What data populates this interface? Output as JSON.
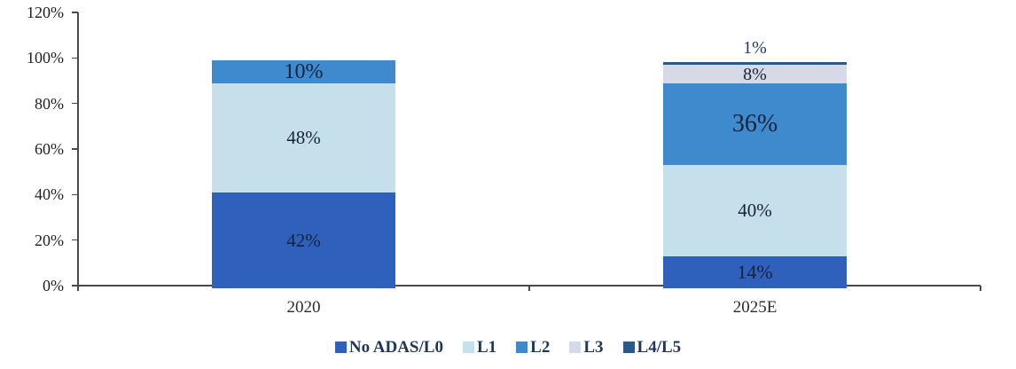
{
  "chart_data": {
    "type": "bar",
    "stacked": true,
    "categories": [
      "2020",
      "2025E"
    ],
    "series": [
      {
        "name": "No ADAS/L0",
        "color": "#2E60BC",
        "values": [
          42,
          14
        ],
        "labels": [
          "42%",
          "14%"
        ]
      },
      {
        "name": "L1",
        "color": "#C6E0EB",
        "values": [
          48,
          40
        ],
        "labels": [
          "48%",
          "40%"
        ]
      },
      {
        "name": "L2",
        "color": "#3E8ACD",
        "values": [
          10,
          36
        ],
        "labels": [
          "10%",
          "36%"
        ]
      },
      {
        "name": "L3",
        "color": "#D6D9E8",
        "values": [
          0,
          8
        ],
        "labels": [
          "",
          "8%"
        ]
      },
      {
        "name": "L4/L5",
        "color": "#275A8E",
        "values": [
          0,
          1
        ],
        "labels": [
          "",
          ""
        ]
      }
    ],
    "outside_labels": [
      {
        "category_index": 1,
        "text": "1%"
      }
    ],
    "title": "",
    "xlabel": "",
    "ylabel": "",
    "ylim": [
      0,
      120
    ],
    "ytick_labels": [
      "0%",
      "20%",
      "40%",
      "60%",
      "80%",
      "100%",
      "120%"
    ],
    "grid": false,
    "legend_position": "bottom"
  },
  "colors": {
    "axis": "#4a4a4a",
    "segment_label": "#17233c",
    "outside_label": "#1f3864",
    "legend_text": "#1f3656",
    "tick_label": "#1f1f1f"
  }
}
